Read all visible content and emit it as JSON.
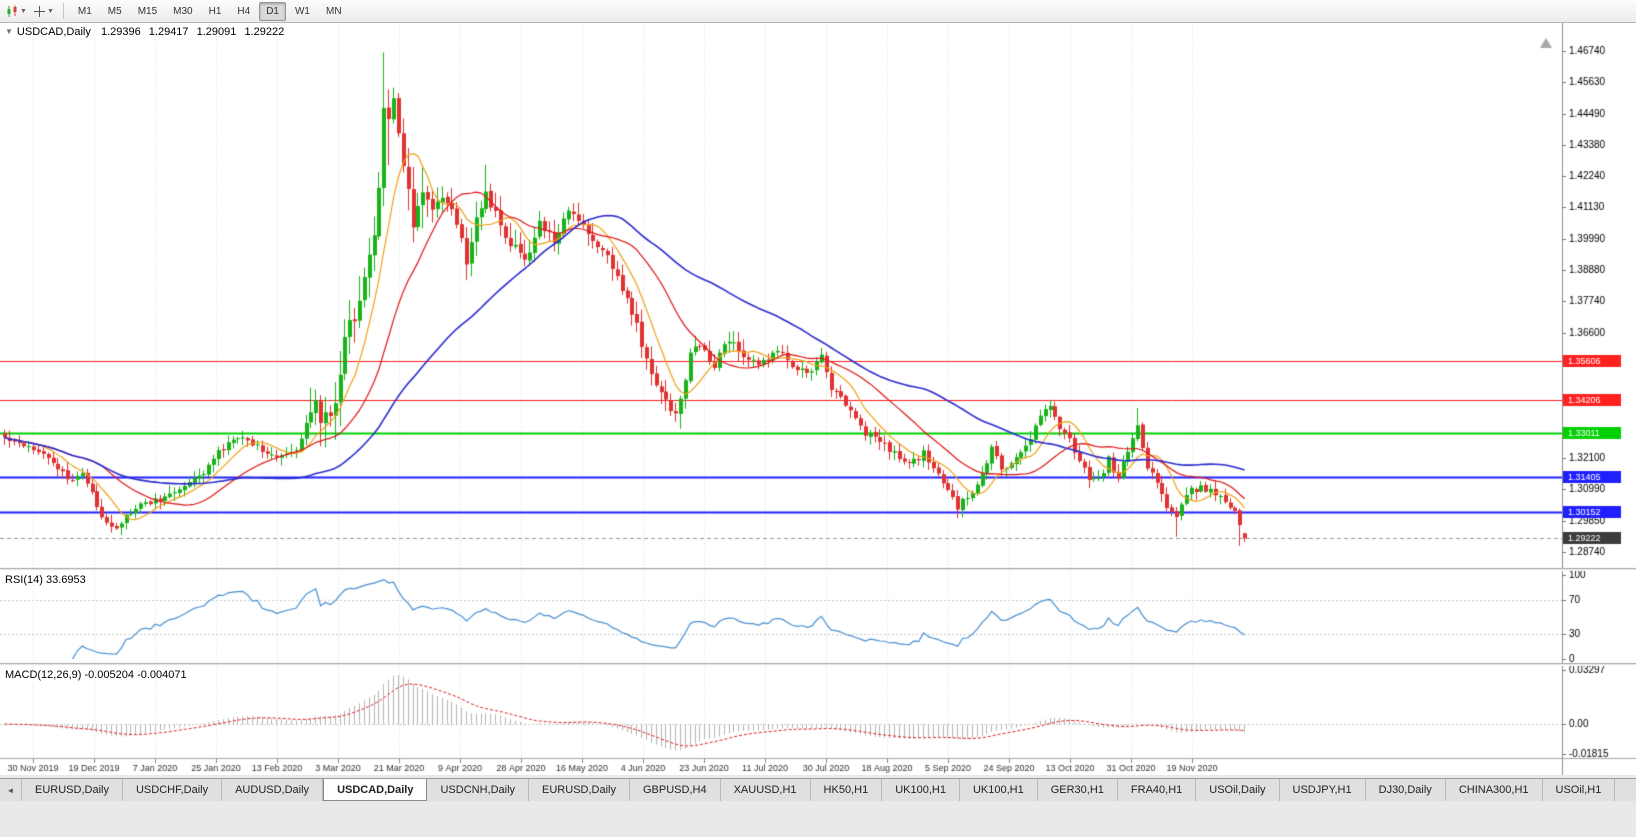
{
  "toolbar": {
    "timeframes": [
      {
        "label": "M1",
        "active": false
      },
      {
        "label": "M5",
        "active": false
      },
      {
        "label": "M15",
        "active": false
      },
      {
        "label": "M30",
        "active": false
      },
      {
        "label": "H1",
        "active": false
      },
      {
        "label": "H4",
        "active": false
      },
      {
        "label": "D1",
        "active": true
      },
      {
        "label": "W1",
        "active": false
      },
      {
        "label": "MN",
        "active": false
      }
    ]
  },
  "chart": {
    "symbol": "USDCAD,Daily",
    "open": "1.29396",
    "high": "1.29417",
    "low": "1.29091",
    "close": "1.29222"
  },
  "rsi_panel": {
    "label": "RSI(14) 33.6953"
  },
  "macd_panel": {
    "label": "MACD(12,26,9) -0.005204 -0.004071",
    "axis_max": "0.03297",
    "axis_zero": "0.00",
    "axis_min": "-0.01815"
  },
  "tabs": [
    {
      "label": "EURUSD,Daily",
      "active": false
    },
    {
      "label": "USDCHF,Daily",
      "active": false
    },
    {
      "label": "AUDUSD,Daily",
      "active": false
    },
    {
      "label": "USDCAD,Daily",
      "active": true
    },
    {
      "label": "USDCNH,Daily",
      "active": false
    },
    {
      "label": "EURUSD,Daily",
      "active": false
    },
    {
      "label": "GBPUSD,H4",
      "active": false
    },
    {
      "label": "XAUUSD,H1",
      "active": false
    },
    {
      "label": "HK50,H1",
      "active": false
    },
    {
      "label": "UK100,H1",
      "active": false
    },
    {
      "label": "UK100,H1",
      "active": false
    },
    {
      "label": "GER30,H1",
      "active": false
    },
    {
      "label": "FRA40,H1",
      "active": false
    },
    {
      "label": "USOil,Daily",
      "active": false
    },
    {
      "label": "USDJPY,H1",
      "active": false
    },
    {
      "label": "DJ30,Daily",
      "active": false
    },
    {
      "label": "CHINA300,H1",
      "active": false
    },
    {
      "label": "USOil,H1",
      "active": false
    }
  ],
  "chart_data": {
    "type": "candlestick",
    "symbol": "USDCAD",
    "timeframe": "Daily",
    "days": 256,
    "price_range": [
      1.2815,
      1.4775
    ],
    "y_ticks": [
      1.4674,
      1.4563,
      1.4449,
      1.4338,
      1.4224,
      1.4113,
      1.3999,
      1.3888,
      1.3774,
      1.366,
      1.321,
      1.3099,
      1.2985,
      1.2874
    ],
    "x_labels": [
      "30 Nov 2019",
      "19 Dec 2019",
      "7 Jan 2020",
      "25 Jan 2020",
      "13 Feb 2020",
      "3 Mar 2020",
      "21 Mar 2020",
      "9 Apr 2020",
      "28 Apr 2020",
      "16 May 2020",
      "4 Jun 2020",
      "23 Jun 2020",
      "11 Jul 2020",
      "30 Jul 2020",
      "18 Aug 2020",
      "5 Sep 2020",
      "24 Sep 2020",
      "13 Oct 2020",
      "31 Oct 2020",
      "19 Nov 2020"
    ],
    "x_label_first_day": 6,
    "x_label_step_days": 12.54,
    "h_lines": [
      {
        "value": 1.35606,
        "label": "1.35606",
        "color": "#ff2020",
        "width": 1
      },
      {
        "value": 1.34206,
        "label": "1.34206",
        "color": "#ff2020",
        "width": 1
      },
      {
        "value": 1.33011,
        "label": "1.33011",
        "color": "#00d000",
        "width": 2
      },
      {
        "value": 1.31405,
        "label": "1.31405",
        "color": "#2020ff",
        "width": 2
      },
      {
        "value": 1.30152,
        "label": "1.30152",
        "color": "#2020ff",
        "width": 2
      }
    ],
    "current_price": {
      "value": 1.29222,
      "label": "1.29222",
      "color": "#3c3c3c"
    },
    "close_anchors": [
      [
        0,
        1.3285
      ],
      [
        4,
        1.3262
      ],
      [
        8,
        1.3232
      ],
      [
        13,
        1.3132
      ],
      [
        16,
        1.3158
      ],
      [
        20,
        1.2998
      ],
      [
        23,
        1.2962
      ],
      [
        26,
        1.3015
      ],
      [
        29,
        1.3048
      ],
      [
        33,
        1.3068
      ],
      [
        36,
        1.3102
      ],
      [
        40,
        1.3142
      ],
      [
        44,
        1.3228
      ],
      [
        48,
        1.3288
      ],
      [
        52,
        1.3256
      ],
      [
        56,
        1.3208
      ],
      [
        60,
        1.3232
      ],
      [
        63,
        1.3398
      ],
      [
        65,
        1.3372
      ],
      [
        67,
        1.3332
      ],
      [
        68,
        1.3418
      ],
      [
        70,
        1.3655
      ],
      [
        72,
        1.3738
      ],
      [
        74,
        1.3868
      ],
      [
        76,
        1.3988
      ],
      [
        77,
        1.4205
      ],
      [
        78,
        1.4496
      ],
      [
        79,
        1.4432
      ],
      [
        80,
        1.4478
      ],
      [
        82,
        1.4252
      ],
      [
        84,
        1.4042
      ],
      [
        86,
        1.4188
      ],
      [
        88,
        1.4082
      ],
      [
        90,
        1.4158
      ],
      [
        93,
        1.4052
      ],
      [
        95,
        1.3922
      ],
      [
        97,
        1.4058
      ],
      [
        99,
        1.4168
      ],
      [
        101,
        1.4082
      ],
      [
        103,
        1.3992
      ],
      [
        106,
        1.3952
      ],
      [
        108,
        1.3928
      ],
      [
        110,
        1.4068
      ],
      [
        113,
        1.3985
      ],
      [
        116,
        1.4098
      ],
      [
        119,
        1.4042
      ],
      [
        122,
        1.3972
      ],
      [
        125,
        1.3902
      ],
      [
        128,
        1.3782
      ],
      [
        130,
        1.3682
      ],
      [
        133,
        1.3502
      ],
      [
        136,
        1.3422
      ],
      [
        138,
        1.3362
      ],
      [
        139,
        1.3418
      ],
      [
        141,
        1.3588
      ],
      [
        143,
        1.3618
      ],
      [
        146,
        1.3552
      ],
      [
        149,
        1.3642
      ],
      [
        152,
        1.3582
      ],
      [
        155,
        1.3542
      ],
      [
        159,
        1.3594
      ],
      [
        162,
        1.3542
      ],
      [
        165,
        1.3512
      ],
      [
        168,
        1.3572
      ],
      [
        170,
        1.3462
      ],
      [
        172,
        1.3428
      ],
      [
        174,
        1.3382
      ],
      [
        177,
        1.3302
      ],
      [
        180,
        1.3272
      ],
      [
        183,
        1.3228
      ],
      [
        186,
        1.3182
      ],
      [
        189,
        1.3226
      ],
      [
        192,
        1.3152
      ],
      [
        194,
        1.3092
      ],
      [
        196,
        1.3032
      ],
      [
        199,
        1.3096
      ],
      [
        202,
        1.3182
      ],
      [
        203,
        1.3252
      ],
      [
        205,
        1.3168
      ],
      [
        208,
        1.3206
      ],
      [
        211,
        1.3288
      ],
      [
        213,
        1.3368
      ],
      [
        215,
        1.3396
      ],
      [
        217,
        1.3325
      ],
      [
        219,
        1.3278
      ],
      [
        221,
        1.3198
      ],
      [
        223,
        1.3142
      ],
      [
        225,
        1.3128
      ],
      [
        227,
        1.3205
      ],
      [
        229,
        1.3135
      ],
      [
        231,
        1.324
      ],
      [
        233,
        1.333
      ],
      [
        235,
        1.318
      ],
      [
        237,
        1.3125
      ],
      [
        239,
        1.3042
      ],
      [
        241,
        1.2992
      ],
      [
        242,
        1.3045
      ],
      [
        244,
        1.3092
      ],
      [
        246,
        1.3105
      ],
      [
        248,
        1.309
      ],
      [
        250,
        1.3062
      ],
      [
        252,
        1.304
      ],
      [
        253,
        1.301
      ],
      [
        254,
        1.2964
      ],
      [
        255,
        1.29222
      ]
    ],
    "bar_overrides": {
      "23": {
        "low": 1.2952
      },
      "63": {
        "high": 1.3464
      },
      "78": {
        "high": 1.4669
      },
      "79": {
        "low": 1.4264
      },
      "99": {
        "high": 1.4265
      },
      "139": {
        "low": 1.3316
      },
      "196": {
        "low": 1.2994
      },
      "203": {
        "high": 1.326
      },
      "215": {
        "high": 1.342
      },
      "233": {
        "high": 1.339
      },
      "241": {
        "low": 1.2928
      },
      "254": {
        "low": 1.2895
      },
      "255": {
        "open": 1.29396,
        "high": 1.29417,
        "low": 1.29091,
        "close": 1.29222
      }
    },
    "moving_averages": [
      {
        "period": 8,
        "color": "#efa21a",
        "width": 1.2
      },
      {
        "period": 21,
        "color": "#e01616",
        "width": 1.2
      },
      {
        "period": 50,
        "color": "#2b2bd0",
        "width": 1.6
      }
    ],
    "rsi": {
      "period": 14,
      "value": 33.6953,
      "color": "#4a90d2",
      "levels": [
        70,
        30
      ],
      "scale": [
        0,
        100
      ],
      "axis_labels": [
        "100",
        "70",
        "30",
        "0"
      ]
    },
    "macd": {
      "fast": 12,
      "slow": 26,
      "signal": 9,
      "main_value": -0.005204,
      "signal_value": -0.004071,
      "scale": [
        -0.01815,
        0.03297
      ],
      "histogram_color": "#b4b4b4",
      "signal_color": "#e02020"
    },
    "up_color": "#19b219",
    "down_color": "#e03232"
  }
}
